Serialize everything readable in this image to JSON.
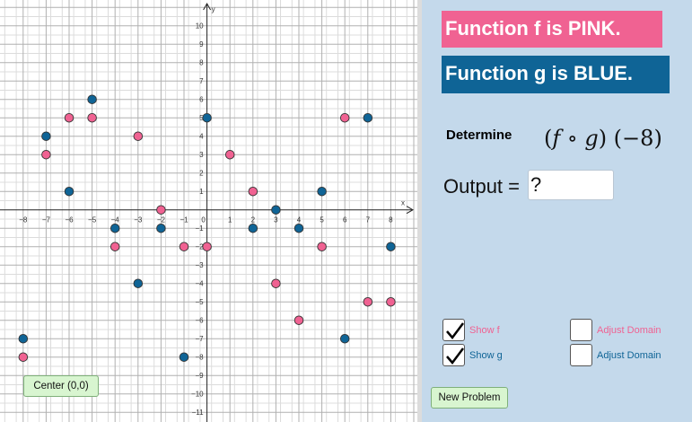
{
  "colors": {
    "f": "#f06292",
    "g": "#0f6496",
    "panel": "#c4d9eb",
    "grid": "#a8a8a8"
  },
  "banners": {
    "f_text": "Function f is PINK.",
    "g_text": "Function g is BLUE."
  },
  "question": {
    "determine_label": "Determine",
    "function_f": "f",
    "compose_operator": "∘",
    "function_g": "g",
    "input": "−8"
  },
  "output": {
    "label": "Output =",
    "value": "?"
  },
  "checkboxes": [
    {
      "label": "Show f",
      "checked": true,
      "color": "#f06292"
    },
    {
      "label": "Show g",
      "checked": true,
      "color": "#0f6496"
    },
    {
      "label": "Adjust Domain",
      "checked": false,
      "color": "#f06292"
    },
    {
      "label": "Adjust Domain",
      "checked": false,
      "color": "#0f6496"
    }
  ],
  "buttons": {
    "new_problem": "New Problem",
    "center": "Center (0,0)"
  },
  "chart_data": {
    "type": "scatter",
    "xlabel": "x",
    "ylabel": "y",
    "xlim": [
      -8.8,
      9
    ],
    "ylim": [
      -11.4,
      11.6
    ],
    "x_ticks": [
      -8,
      -7,
      -6,
      -5,
      -4,
      -3,
      -2,
      -1,
      0,
      1,
      2,
      3,
      4,
      5,
      6,
      7,
      8
    ],
    "y_ticks": [
      -11,
      -10,
      -9,
      -8,
      -7,
      -6,
      -5,
      -4,
      -3,
      -2,
      -1,
      0,
      1,
      2,
      3,
      4,
      5,
      6,
      7,
      8,
      9,
      10
    ],
    "grid": true,
    "series": [
      {
        "name": "f",
        "color": "#f06292",
        "points": [
          [
            -8,
            -8
          ],
          [
            -7,
            3
          ],
          [
            -6,
            5
          ],
          [
            -5,
            5
          ],
          [
            -4,
            -2
          ],
          [
            -3,
            4
          ],
          [
            -2,
            0
          ],
          [
            -1,
            -2
          ],
          [
            0,
            -2
          ],
          [
            1,
            3
          ],
          [
            2,
            1
          ],
          [
            3,
            -4
          ],
          [
            4,
            -6
          ],
          [
            5,
            -2
          ],
          [
            6,
            5
          ],
          [
            7,
            -5
          ],
          [
            8,
            -5
          ]
        ]
      },
      {
        "name": "g",
        "color": "#0f6496",
        "points": [
          [
            -8,
            -7
          ],
          [
            -7,
            4
          ],
          [
            -6,
            1
          ],
          [
            -5,
            6
          ],
          [
            -4,
            -1
          ],
          [
            -3,
            -4
          ],
          [
            -2,
            -1
          ],
          [
            -1,
            -8
          ],
          [
            0,
            5
          ],
          [
            2,
            -1
          ],
          [
            3,
            0
          ],
          [
            4,
            -1
          ],
          [
            5,
            1
          ],
          [
            6,
            -7
          ],
          [
            7,
            5
          ],
          [
            8,
            -2
          ]
        ]
      }
    ]
  }
}
